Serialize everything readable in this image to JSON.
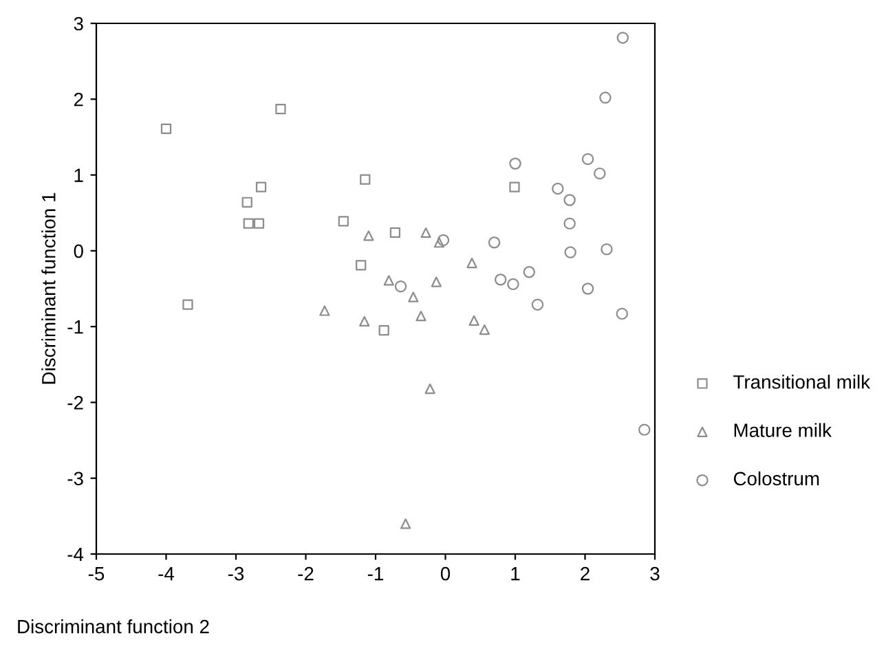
{
  "chart_data": {
    "type": "scatter",
    "xlabel": "Discriminant function 2",
    "ylabel": "Discriminant function 1",
    "xlim": [
      -5,
      3
    ],
    "ylim": [
      -4,
      3
    ],
    "xticks": [
      -5,
      -4,
      -3,
      -2,
      -1,
      0,
      1,
      2,
      3
    ],
    "yticks": [
      -4,
      -3,
      -2,
      -1,
      0,
      1,
      2,
      3
    ],
    "grid": false,
    "legend": "right",
    "series": [
      {
        "name": "Transitional milk",
        "color": "#8c8c8c",
        "marker": "square",
        "x": [
          -4.0,
          -2.36,
          -2.64,
          -2.84,
          -2.82,
          -2.67,
          -1.15,
          -1.46,
          -1.21,
          -3.69,
          -0.72,
          0.99,
          -0.88
        ],
        "values": [
          1.61,
          1.87,
          0.84,
          0.64,
          0.36,
          0.36,
          0.94,
          0.39,
          -0.19,
          -0.71,
          0.24,
          0.84,
          -1.05
        ]
      },
      {
        "name": "Mature milk",
        "color": "#8c8c8c",
        "marker": "triangle",
        "x": [
          -1.1,
          -0.28,
          -0.09,
          0.38,
          -0.81,
          -0.46,
          -0.13,
          -1.16,
          -0.35,
          0.41,
          0.56,
          -1.73,
          -0.22,
          -0.57
        ],
        "values": [
          0.2,
          0.24,
          0.11,
          -0.16,
          -0.39,
          -0.61,
          -0.41,
          -0.93,
          -0.86,
          -0.92,
          -1.04,
          -0.79,
          -1.82,
          -3.6
        ]
      },
      {
        "name": "Colostrum",
        "color": "#8c8c8c",
        "marker": "circle",
        "x": [
          2.54,
          2.29,
          1.0,
          2.04,
          2.21,
          1.61,
          1.78,
          1.78,
          1.79,
          2.31,
          0.7,
          -0.03,
          0.79,
          0.97,
          1.2,
          -0.64,
          2.04,
          1.32,
          2.53,
          2.85
        ],
        "values": [
          2.81,
          2.02,
          1.15,
          1.21,
          1.02,
          0.82,
          0.67,
          0.36,
          -0.02,
          0.02,
          0.11,
          0.14,
          -0.38,
          -0.44,
          -0.28,
          -0.47,
          -0.5,
          -0.71,
          -0.83,
          -2.36
        ]
      }
    ]
  }
}
